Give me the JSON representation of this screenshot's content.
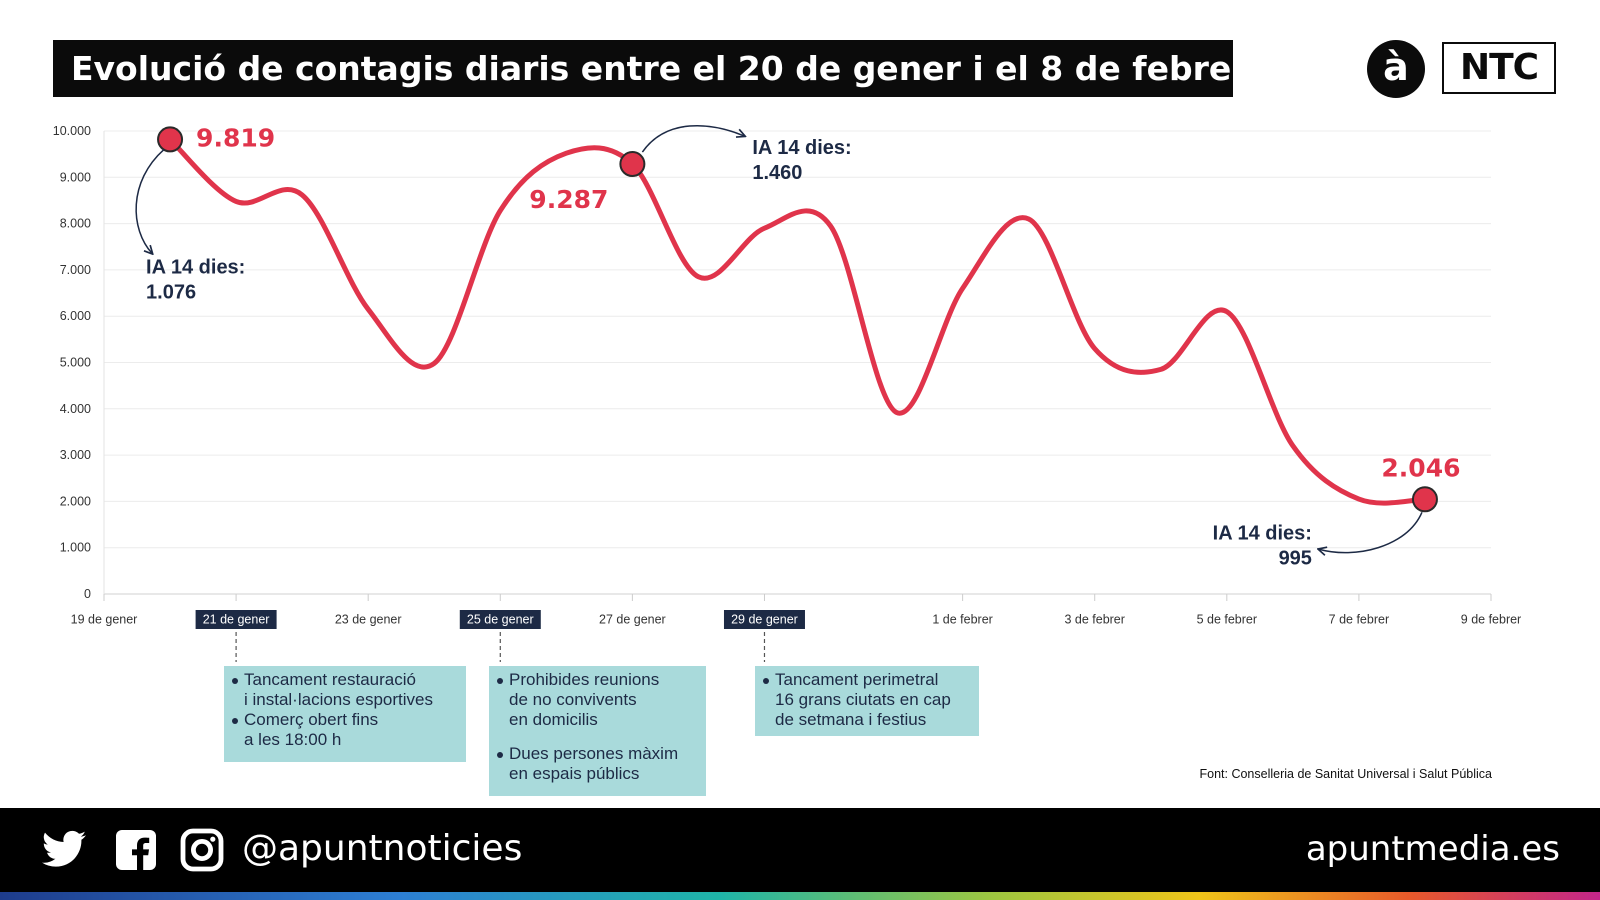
{
  "header": {
    "title": "Evolució de contagis diaris entre el 20 de gener i el 8 de febrer",
    "logo_a": "à",
    "logo_ntc": "NTC"
  },
  "chart_data": {
    "type": "line",
    "title": "Evolució de contagis diaris entre el 20 de gener i el 8 de febrer",
    "x": [
      "2021-01-20",
      "2021-01-21",
      "2021-01-22",
      "2021-01-23",
      "2021-01-24",
      "2021-01-25",
      "2021-01-26",
      "2021-01-27",
      "2021-01-28",
      "2021-01-29",
      "2021-01-30",
      "2021-01-31",
      "2021-02-01",
      "2021-02-02",
      "2021-02-03",
      "2021-02-04",
      "2021-02-05",
      "2021-02-06",
      "2021-02-07",
      "2021-02-08"
    ],
    "series": [
      {
        "values": [
          9819,
          8480,
          8620,
          6150,
          4980,
          8280,
          9520,
          9287,
          6850,
          7900,
          7950,
          3920,
          6600,
          8100,
          5300,
          4850,
          6100,
          3200,
          2050,
          2046
        ],
        "color": "#e0344b"
      }
    ],
    "ylim": [
      0,
      10000
    ],
    "yticks": [
      "0",
      "1.000",
      "2.000",
      "3.000",
      "4.000",
      "5.000",
      "6.000",
      "7.000",
      "8.000",
      "9.000",
      "10.000"
    ],
    "xticks": [
      {
        "date": "2021-01-19",
        "label": "19 de gener",
        "highlight": false
      },
      {
        "date": "2021-01-21",
        "label": "21 de gener",
        "highlight": true
      },
      {
        "date": "2021-01-23",
        "label": "23 de gener",
        "highlight": false
      },
      {
        "date": "2021-01-25",
        "label": "25 de gener",
        "highlight": true
      },
      {
        "date": "2021-01-27",
        "label": "27 de gener",
        "highlight": false
      },
      {
        "date": "2021-01-29",
        "label": "29 de gener",
        "highlight": true
      },
      {
        "date": "2021-02-01",
        "label": "1 de febrer",
        "highlight": false
      },
      {
        "date": "2021-02-03",
        "label": "3 de febrer",
        "highlight": false
      },
      {
        "date": "2021-02-05",
        "label": "5 de febrer",
        "highlight": false
      },
      {
        "date": "2021-02-07",
        "label": "7 de febrer",
        "highlight": false
      },
      {
        "date": "2021-02-09",
        "label": "9 de febrer",
        "highlight": false
      }
    ],
    "grid": true,
    "highlight_points": [
      {
        "date": "2021-01-20",
        "value": 9819,
        "label": "9.819",
        "note_line1": "IA 14 dies:",
        "note_line2": "1.076"
      },
      {
        "date": "2021-01-27",
        "value": 9287,
        "label": "9.287",
        "note_line1": "IA 14 dies:",
        "note_line2": "1.460"
      },
      {
        "date": "2021-02-08",
        "value": 2046,
        "label": "2.046",
        "note_line1": "IA 14 dies:",
        "note_line2": "995"
      }
    ]
  },
  "measures": [
    {
      "items": [
        "Tancament restauració\ni instal·lacions esportives",
        "Comerç obert fins\na les 18:00 h"
      ]
    },
    {
      "items": [
        "Prohibides reunions\nde no convivents\nen domicilis",
        "Dues persones màxim\nen espais públics"
      ]
    },
    {
      "items": [
        "Tancament perimetral\n16 grans ciutats en cap\nde setmana i festius"
      ]
    }
  ],
  "source": "Font: Conselleria de Sanitat Universal i Salut Pública",
  "footer": {
    "icons": [
      "twitter-icon",
      "facebook-icon",
      "instagram-icon"
    ],
    "handle": "@apuntnoticies",
    "site": "apuntmedia.es"
  },
  "colors": {
    "line": "#e0344b",
    "annotation_text": "#1d2a45",
    "box_bg": "#a9dadb",
    "date_badge_bg": "#1d2a45"
  }
}
